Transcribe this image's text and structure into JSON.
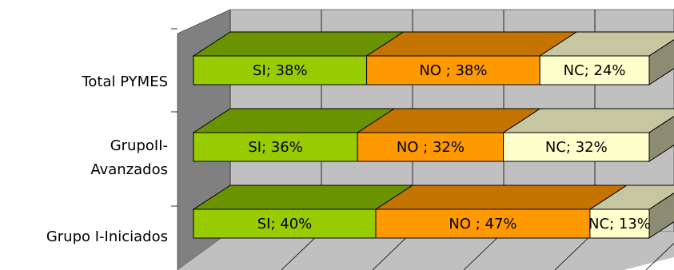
{
  "chart_data": {
    "type": "bar",
    "orientation": "horizontal",
    "stacked": true,
    "percent_stacked": true,
    "three_d": true,
    "grid": true,
    "xlim": [
      0,
      100
    ],
    "categories": [
      "Total PYMES",
      "GrupoII-\nAvanzados",
      "Grupo I-Iniciados"
    ],
    "series": [
      {
        "name": "SI",
        "values": [
          38,
          36,
          40
        ],
        "labels": [
          "SI; 38%",
          "SI; 36%",
          "SI; 40%"
        ],
        "color": "#99cc00",
        "top_color": "#6b9200",
        "side_color": "#5a7b00"
      },
      {
        "name": "NO",
        "values": [
          38,
          32,
          47
        ],
        "labels": [
          "NO ; 38%",
          "NO ; 32%",
          "NO ; 47%"
        ],
        "color": "#ff9900",
        "top_color": "#c47400",
        "side_color": "#a86300"
      },
      {
        "name": "NC",
        "values": [
          24,
          32,
          13
        ],
        "labels": [
          "NC; 24%",
          "NC; 32%",
          "NC; 13%"
        ],
        "color": "#ffffcc",
        "top_color": "#c6c6a0",
        "side_color": "#8c8c72"
      }
    ],
    "colors": {
      "back_wall": "#c0c0c0",
      "side_wall": "#808080",
      "floor": "#c0c0c0",
      "gridline": "#000000"
    }
  }
}
